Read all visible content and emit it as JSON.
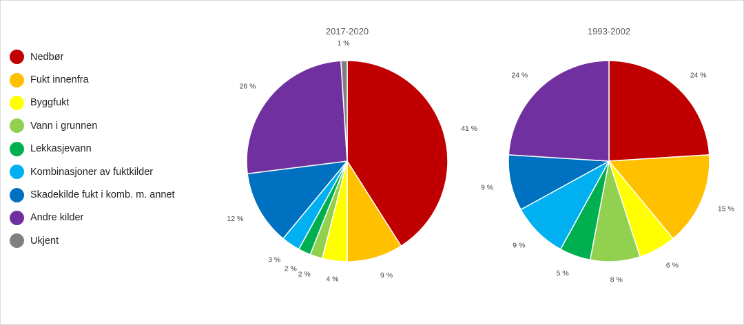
{
  "chart_data": [
    {
      "type": "pie",
      "title": "2017-2020",
      "categories": [
        "Nedbør",
        "Fukt innenfra",
        "Byggfukt",
        "Vann i grunnen",
        "Lekkasjevann",
        "Kombinasjoner av fuktkilder",
        "Skadekilde fukt i komb. m. annet",
        "Andre kilder",
        "Ukjent"
      ],
      "values": [
        41,
        9,
        4,
        2,
        2,
        3,
        12,
        26,
        1
      ],
      "labels": [
        "41 %",
        "9 %",
        "4 %",
        "2 %",
        "2 %",
        "3 %",
        "12 %",
        "26 %",
        "1 %"
      ],
      "legend_position": "left"
    },
    {
      "type": "pie",
      "title": "1993-2002",
      "categories": [
        "Nedbør",
        "Fukt innenfra",
        "Byggfukt",
        "Vann i grunnen",
        "Lekkasjevann",
        "Kombinasjoner av fuktkilder",
        "Skadekilde fukt i komb. m. annet",
        "Andre kilder"
      ],
      "values": [
        24,
        15,
        6,
        8,
        5,
        9,
        9,
        24
      ],
      "labels": [
        "24 %",
        "15 %",
        "6 %",
        "8 %",
        "5 %",
        "9 %",
        "9 %",
        "24 %"
      ],
      "legend_position": "left"
    }
  ],
  "legend": [
    {
      "label": "Nedbør",
      "color": "#c00000"
    },
    {
      "label": "Fukt innenfra",
      "color": "#ffc000"
    },
    {
      "label": "Byggfukt",
      "color": "#ffff00"
    },
    {
      "label": "Vann i grunnen",
      "color": "#92d050"
    },
    {
      "label": "Lekkasjevann",
      "color": "#00b050"
    },
    {
      "label": "Kombinasjoner av fuktkilder",
      "color": "#00b0f0"
    },
    {
      "label": "Skadekilde fukt i komb. m. annet",
      "color": "#0070c0"
    },
    {
      "label": "Andre kilder",
      "color": "#7030a0"
    },
    {
      "label": "Ukjent",
      "color": "#808080"
    }
  ]
}
